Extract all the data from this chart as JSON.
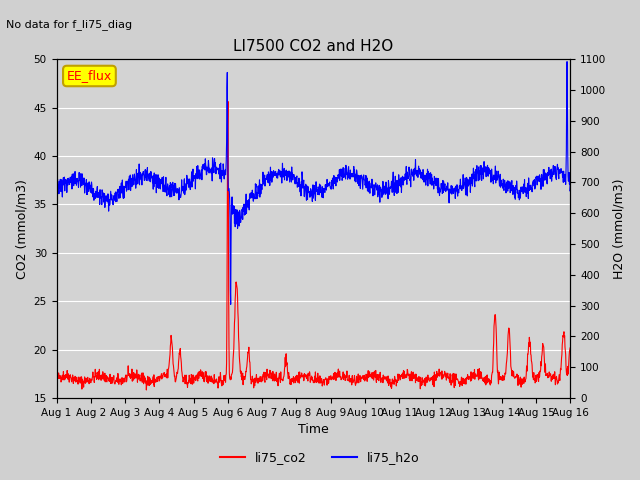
{
  "title": "LI7500 CO2 and H2O",
  "subtitle": "No data for f_li75_diag",
  "xlabel": "Time",
  "ylabel_left": "CO2 (mmol/m3)",
  "ylabel_right": "H2O (mmol/m3)",
  "ylim_left": [
    15,
    50
  ],
  "ylim_right": [
    0,
    1100
  ],
  "yticks_left": [
    15,
    20,
    25,
    30,
    35,
    40,
    45,
    50
  ],
  "yticks_right": [
    0,
    100,
    200,
    300,
    400,
    500,
    600,
    700,
    800,
    900,
    1000,
    1100
  ],
  "xtick_labels": [
    "Aug 1",
    "Aug 2",
    "Aug 3",
    "Aug 4",
    "Aug 5",
    "Aug 6",
    "Aug 7",
    "Aug 8",
    "Aug 9",
    "Aug 10",
    "Aug 11",
    "Aug 12",
    "Aug 13",
    "Aug 14",
    "Aug 15",
    "Aug 16"
  ],
  "co2_color": "#ff0000",
  "h2o_color": "#0000ff",
  "legend_label_co2": "li75_co2",
  "legend_label_h2o": "li75_h2o",
  "ee_flux_label": "EE_flux",
  "ee_flux_color": "#ffff00",
  "ee_flux_text_color": "#ff0000",
  "bg_color": "#e8e8e8",
  "axes_bg_color": "#d3d3d3",
  "grid_color": "#ffffff",
  "n_points": 1500
}
